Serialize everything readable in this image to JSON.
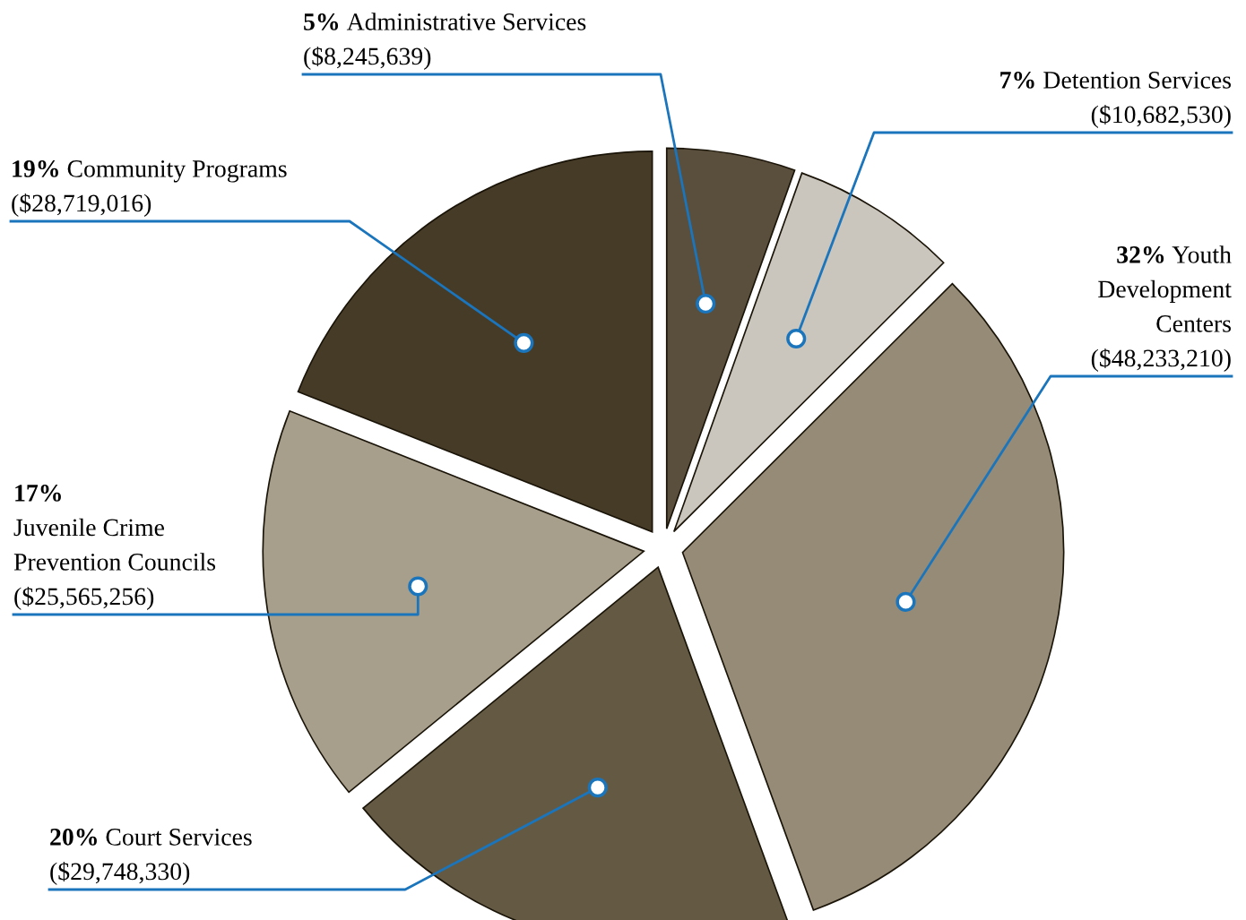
{
  "chart_data": {
    "type": "pie",
    "categories": [
      "Administrative Services",
      "Detention Services",
      "Youth\nDevelopment\nCenters",
      "Court Services",
      "Juvenile Crime\nPrevention Councils",
      "Community Programs"
    ],
    "values": [
      8245639,
      10682530,
      48233210,
      29748330,
      25565256,
      28719016
    ],
    "value_labels": [
      "($8,245,639)",
      "($10,682,530)",
      "($48,233,210)",
      "($29,748,330)",
      "($25,565,256)",
      "($28,719,016)"
    ],
    "annotations": [
      "5%",
      "7%",
      "32%",
      "20%",
      "17%",
      "19%"
    ],
    "colors": [
      "#5a4e3c",
      "#cac5bd",
      "#968b76",
      "#645a44",
      "#a79f8c",
      "#463b27"
    ]
  }
}
